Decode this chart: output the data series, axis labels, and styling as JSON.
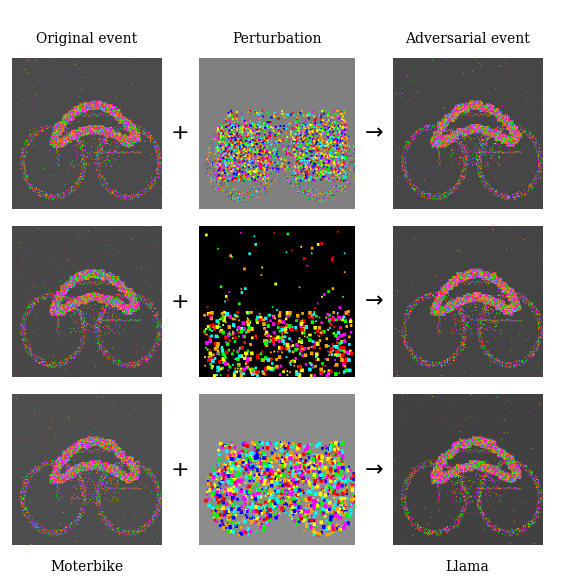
{
  "title_top_left": "Original event",
  "title_top_center": "Perturbation",
  "title_top_right": "Adversarial event",
  "label_bottom_left": "Moterbike",
  "label_bottom_right": "Llama",
  "bg_color": "#ffffff",
  "label_fontsize": 11,
  "grid_rows": 3,
  "grid_cols": 3,
  "plus_symbol": "+",
  "arrow_symbol": "→",
  "dark_bg": "#5a5a5a",
  "black_bg": "#000000",
  "gray_bg": "#888888"
}
